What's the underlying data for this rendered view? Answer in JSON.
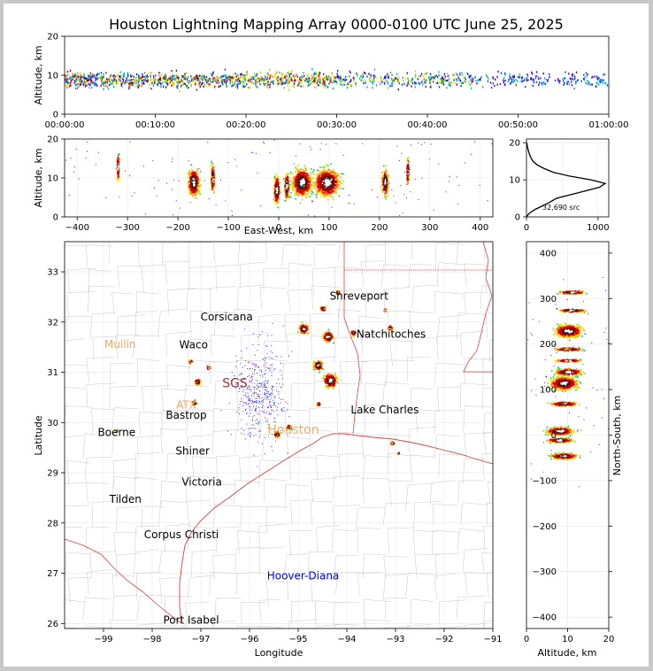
{
  "title": "Houston Lightning Mapping Array 0000-0100 UTC June 25, 2025",
  "chart_data": [
    {
      "id": "time_height",
      "type": "scatter",
      "ylabel": "Altitude, km",
      "ylim": [
        0,
        20
      ],
      "yticks": [
        "0",
        "10",
        "20"
      ],
      "xticks": [
        "00:00:00",
        "00:10:00",
        "00:20:00",
        "00:30:00",
        "00:40:00",
        "00:50:00",
        "01:00:00"
      ],
      "xlim_minutes": [
        0,
        60
      ]
    },
    {
      "id": "ew_height",
      "type": "scatter",
      "xlabel": "East-West, km",
      "ylabel": "Altitude, km",
      "xlim": [
        -425,
        425
      ],
      "ylim": [
        0,
        20
      ],
      "xticks": [
        "−400",
        "−300",
        "−200",
        "−100",
        "0",
        "100",
        "200",
        "300",
        "400"
      ],
      "yticks": [
        "0",
        "10",
        "20"
      ],
      "clusters": [
        {
          "x": -170,
          "w": 18,
          "alt": 9
        },
        {
          "x": -132,
          "w": 6,
          "alt": 10
        },
        {
          "x": -320,
          "w": 4,
          "alt": 13
        },
        {
          "x": -5,
          "w": 10,
          "alt": 7
        },
        {
          "x": 15,
          "w": 8,
          "alt": 8
        },
        {
          "x": 45,
          "w": 30,
          "alt": 9
        },
        {
          "x": 95,
          "w": 40,
          "alt": 9
        },
        {
          "x": 210,
          "w": 10,
          "alt": 9
        },
        {
          "x": 255,
          "w": 4,
          "alt": 12
        }
      ]
    },
    {
      "id": "altitude_histogram",
      "type": "line",
      "xticks": [
        "0",
        "1000"
      ],
      "yticks": [
        "0",
        "10",
        "20"
      ],
      "xlim": [
        0,
        1150
      ],
      "ylim": [
        0,
        21
      ],
      "annotation": "32,690 src",
      "points": [
        [
          0,
          0
        ],
        [
          40,
          1
        ],
        [
          120,
          2
        ],
        [
          230,
          3
        ],
        [
          330,
          4
        ],
        [
          420,
          5
        ],
        [
          620,
          6
        ],
        [
          820,
          7
        ],
        [
          1020,
          8
        ],
        [
          1100,
          9
        ],
        [
          900,
          10
        ],
        [
          600,
          11
        ],
        [
          380,
          12
        ],
        [
          250,
          13
        ],
        [
          150,
          14
        ],
        [
          90,
          15
        ],
        [
          60,
          16
        ],
        [
          40,
          17
        ],
        [
          25,
          18
        ],
        [
          12,
          19
        ],
        [
          4,
          20
        ]
      ]
    },
    {
      "id": "plan_view_map",
      "type": "scatter",
      "xlabel": "Longitude",
      "ylabel": "Latitude",
      "xlim": [
        -99.8,
        -91.0
      ],
      "ylim": [
        25.9,
        33.6
      ],
      "xticks": [
        "−99",
        "−98",
        "−97",
        "−96",
        "−95",
        "−94",
        "−93",
        "−92",
        "−91"
      ],
      "yticks": [
        "26",
        "27",
        "28",
        "29",
        "30",
        "31",
        "32",
        "33"
      ],
      "places": [
        {
          "name": "Shreveport",
          "lon": -93.75,
          "lat": 32.52,
          "color": "#000000"
        },
        {
          "name": "Corsicana",
          "lon": -96.47,
          "lat": 32.1,
          "color": "#000000"
        },
        {
          "name": "Natchitoches",
          "lon": -93.09,
          "lat": 31.76,
          "color": "#000000"
        },
        {
          "name": "Mullin",
          "lon": -98.66,
          "lat": 31.56,
          "color": "#f4a460"
        },
        {
          "name": "Waco",
          "lon": -97.15,
          "lat": 31.55,
          "color": "#000000"
        },
        {
          "name": "ATX",
          "lon": -97.3,
          "lat": 30.35,
          "color": "#f4a460"
        },
        {
          "name": "Bastrop",
          "lon": -97.3,
          "lat": 30.15,
          "color": "#000000"
        },
        {
          "name": "Lake Charles",
          "lon": -93.22,
          "lat": 30.25,
          "color": "#000000"
        },
        {
          "name": "Boerne",
          "lon": -98.73,
          "lat": 29.8,
          "color": "#000000"
        },
        {
          "name": "Shiner",
          "lon": -97.17,
          "lat": 29.43,
          "color": "#000000"
        },
        {
          "name": "Victoria",
          "lon": -96.98,
          "lat": 28.82,
          "color": "#000000"
        },
        {
          "name": "Tilden",
          "lon": -98.55,
          "lat": 28.47,
          "color": "#000000"
        },
        {
          "name": "Corpus Christi",
          "lon": -97.4,
          "lat": 27.77,
          "color": "#000000"
        },
        {
          "name": "Hoover-Diana",
          "lon": -94.9,
          "lat": 26.95,
          "color": "#0000ff"
        },
        {
          "name": "Port Isabel",
          "lon": -97.2,
          "lat": 26.07,
          "color": "#000000"
        }
      ],
      "overlay_labels": [
        {
          "text": "SGS",
          "lon": -96.3,
          "lat": 30.7,
          "color": "#8b2020"
        },
        {
          "text": "Houston",
          "lon": -95.1,
          "lat": 29.78,
          "color": "#f4a460"
        }
      ],
      "storms": [
        {
          "lon": -94.35,
          "lat": 30.85,
          "r": 0.22,
          "n": 260
        },
        {
          "lon": -94.6,
          "lat": 31.15,
          "r": 0.15,
          "n": 110
        },
        {
          "lon": -94.4,
          "lat": 31.72,
          "r": 0.16,
          "n": 150
        },
        {
          "lon": -94.9,
          "lat": 31.88,
          "r": 0.16,
          "n": 130
        },
        {
          "lon": -94.5,
          "lat": 32.28,
          "r": 0.08,
          "n": 50
        },
        {
          "lon": -94.2,
          "lat": 32.6,
          "r": 0.07,
          "n": 40
        },
        {
          "lon": -93.88,
          "lat": 31.8,
          "r": 0.08,
          "n": 35
        },
        {
          "lon": -93.12,
          "lat": 31.9,
          "r": 0.07,
          "n": 30
        },
        {
          "lon": -93.22,
          "lat": 32.25,
          "r": 0.05,
          "n": 15
        },
        {
          "lon": -93.08,
          "lat": 29.6,
          "r": 0.06,
          "n": 20
        },
        {
          "lon": -92.95,
          "lat": 29.4,
          "r": 0.04,
          "n": 8
        },
        {
          "lon": -94.6,
          "lat": 30.38,
          "r": 0.06,
          "n": 30
        },
        {
          "lon": -95.45,
          "lat": 29.78,
          "r": 0.1,
          "n": 60
        },
        {
          "lon": -95.2,
          "lat": 29.92,
          "r": 0.08,
          "n": 40
        },
        {
          "lon": -97.08,
          "lat": 30.82,
          "r": 0.09,
          "n": 60
        },
        {
          "lon": -97.22,
          "lat": 31.22,
          "r": 0.06,
          "n": 30
        },
        {
          "lon": -97.15,
          "lat": 30.4,
          "r": 0.07,
          "n": 35
        },
        {
          "lon": -98.75,
          "lat": 29.85,
          "r": 0.04,
          "n": 12
        },
        {
          "lon": -96.85,
          "lat": 31.1,
          "r": 0.06,
          "n": 20
        }
      ]
    },
    {
      "id": "ns_height",
      "type": "scatter",
      "xlabel": "Altitude, km",
      "ylabel": "North-South, km",
      "xlim": [
        0,
        20
      ],
      "ylim": [
        -425,
        425
      ],
      "xticks": [
        "0",
        "10",
        "20"
      ],
      "yticks": [
        "−400",
        "−300",
        "−200",
        "−100",
        "0",
        "100",
        "200",
        "300",
        "400"
      ],
      "clusters": [
        {
          "y": 315,
          "h": 6,
          "alt": 11
        },
        {
          "y": 275,
          "h": 6,
          "alt": 11
        },
        {
          "y": 230,
          "h": 22,
          "alt": 10
        },
        {
          "y": 190,
          "h": 6,
          "alt": 10
        },
        {
          "y": 165,
          "h": 5,
          "alt": 10
        },
        {
          "y": 140,
          "h": 12,
          "alt": 10
        },
        {
          "y": 115,
          "h": 22,
          "alt": 9
        },
        {
          "y": 70,
          "h": 8,
          "alt": 9
        },
        {
          "y": 10,
          "h": 14,
          "alt": 8
        },
        {
          "y": -10,
          "h": 8,
          "alt": 8
        },
        {
          "y": -45,
          "h": 10,
          "alt": 9
        }
      ]
    }
  ]
}
